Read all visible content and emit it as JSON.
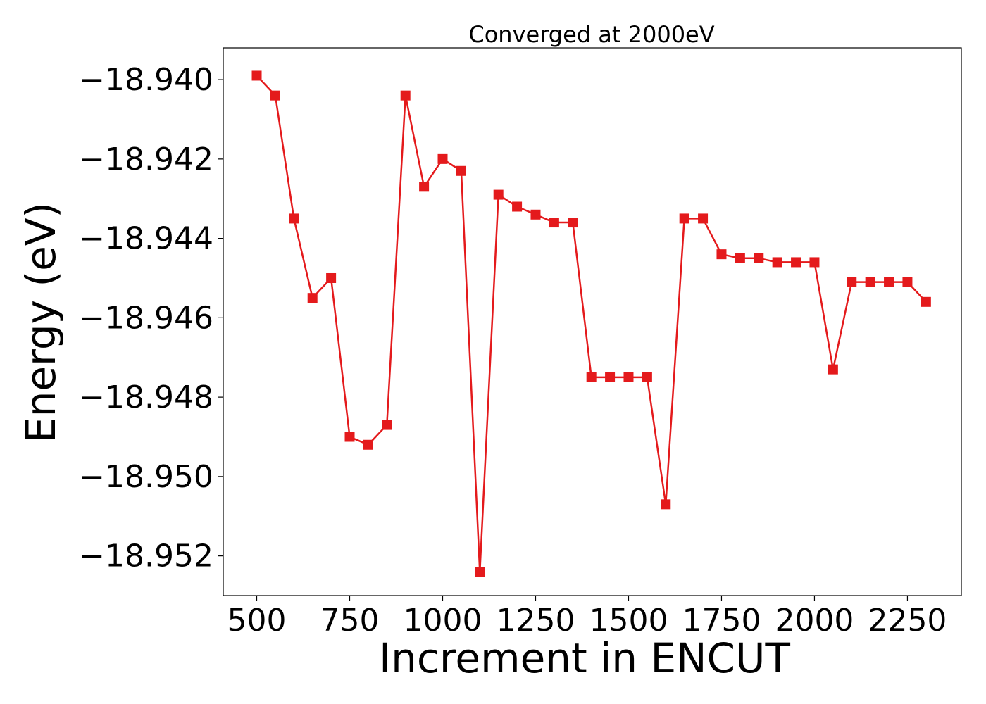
{
  "chart_data": {
    "type": "line",
    "title": "Converged at 2000eV",
    "xlabel": "Increment in ENCUT",
    "ylabel": "Energy (eV)",
    "xlim": [
      410,
      2395
    ],
    "ylim": [
      -18.953,
      -18.9392
    ],
    "xticks": [
      500,
      750,
      1000,
      1250,
      1500,
      1750,
      2000,
      2250
    ],
    "xtick_labels": [
      "500",
      "750",
      "1000",
      "1250",
      "1500",
      "1750",
      "2000",
      "2250"
    ],
    "yticks": [
      -18.94,
      -18.942,
      -18.944,
      -18.946,
      -18.948,
      -18.95,
      -18.952
    ],
    "ytick_labels": [
      "−18.940",
      "−18.942",
      "−18.944",
      "−18.946",
      "−18.948",
      "−18.950",
      "−18.952"
    ],
    "grid": false,
    "series": [
      {
        "color": "#e41a1c",
        "marker": "square",
        "x": [
          500,
          550,
          600,
          650,
          700,
          750,
          800,
          850,
          900,
          950,
          1000,
          1050,
          1100,
          1150,
          1200,
          1250,
          1300,
          1350,
          1400,
          1450,
          1500,
          1550,
          1600,
          1650,
          1700,
          1750,
          1800,
          1850,
          1900,
          1950,
          2000,
          2050,
          2100,
          2150,
          2200,
          2250,
          2300
        ],
        "y": [
          -18.9399,
          -18.9404,
          -18.9435,
          -18.9455,
          -18.945,
          -18.949,
          -18.9492,
          -18.9487,
          -18.9404,
          -18.9427,
          -18.942,
          -18.9423,
          -18.9524,
          -18.9429,
          -18.9432,
          -18.9434,
          -18.9436,
          -18.9436,
          -18.9475,
          -18.9475,
          -18.9475,
          -18.9475,
          -18.9507,
          -18.9435,
          -18.9435,
          -18.9444,
          -18.9445,
          -18.9445,
          -18.9446,
          -18.9446,
          -18.9446,
          -18.9473,
          -18.9451,
          -18.9451,
          -18.9451,
          -18.9451,
          -18.9456
        ]
      }
    ]
  }
}
